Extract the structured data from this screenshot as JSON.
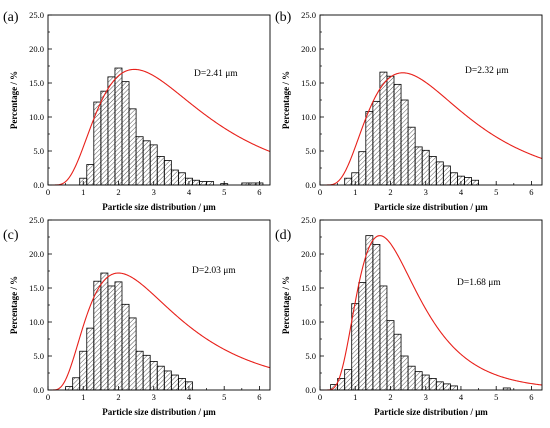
{
  "chart_data": [
    {
      "type": "bar",
      "panel_label": "(a)",
      "annotation": "D=2.41 μm",
      "xlabel": "Particle size distribution / μm",
      "ylabel": "Percentage / %",
      "xlim": [
        0,
        6.3
      ],
      "ylim": [
        0,
        25
      ],
      "x_ticks": [
        "0",
        "1",
        "2",
        "3",
        "4",
        "5",
        "6"
      ],
      "y_ticks": [
        "0.0",
        "5.0",
        "10.0",
        "15.0",
        "20.0",
        "25.0"
      ],
      "bin_width": 0.2,
      "bins": [
        {
          "x": 1.0,
          "value": 1.0
        },
        {
          "x": 1.2,
          "value": 3.0
        },
        {
          "x": 1.4,
          "value": 12.2
        },
        {
          "x": 1.6,
          "value": 13.8
        },
        {
          "x": 1.8,
          "value": 15.9
        },
        {
          "x": 2.0,
          "value": 17.2
        },
        {
          "x": 2.2,
          "value": 15.2
        },
        {
          "x": 2.4,
          "value": 11.2
        },
        {
          "x": 2.6,
          "value": 7.1
        },
        {
          "x": 2.8,
          "value": 6.5
        },
        {
          "x": 3.0,
          "value": 5.9
        },
        {
          "x": 3.2,
          "value": 4.2
        },
        {
          "x": 3.4,
          "value": 3.6
        },
        {
          "x": 3.6,
          "value": 2.2
        },
        {
          "x": 3.8,
          "value": 1.8
        },
        {
          "x": 4.0,
          "value": 1.0
        },
        {
          "x": 4.2,
          "value": 0.7
        },
        {
          "x": 4.4,
          "value": 0.5
        },
        {
          "x": 4.6,
          "value": 0.5
        },
        {
          "x": 5.0,
          "value": 0.2
        },
        {
          "x": 5.6,
          "value": 0.3
        },
        {
          "x": 5.8,
          "value": 0.3
        },
        {
          "x": 6.0,
          "value": 0.3
        }
      ],
      "fit_curve": {
        "type": "lognormal",
        "mode": 2.45,
        "sigma": 0.6,
        "peak": 17.0,
        "color": "#e8201a"
      }
    },
    {
      "type": "bar",
      "panel_label": "(b)",
      "annotation": "D=2.32 μm",
      "xlabel": "Particle size distribution / μm",
      "ylabel": "Percentage / %",
      "xlim": [
        0,
        6.3
      ],
      "ylim": [
        0,
        25
      ],
      "x_ticks": [
        "0",
        "1",
        "2",
        "3",
        "4",
        "5",
        "6"
      ],
      "y_ticks": [
        "0.0",
        "5.0",
        "10.0",
        "15.0",
        "20.0",
        "25.0"
      ],
      "bin_width": 0.2,
      "bins": [
        {
          "x": 0.8,
          "value": 1.0
        },
        {
          "x": 1.0,
          "value": 1.8
        },
        {
          "x": 1.2,
          "value": 4.9
        },
        {
          "x": 1.4,
          "value": 10.8
        },
        {
          "x": 1.6,
          "value": 12.3
        },
        {
          "x": 1.8,
          "value": 16.6
        },
        {
          "x": 2.0,
          "value": 16.0
        },
        {
          "x": 2.2,
          "value": 14.8
        },
        {
          "x": 2.4,
          "value": 12.5
        },
        {
          "x": 2.6,
          "value": 8.5
        },
        {
          "x": 2.8,
          "value": 5.6
        },
        {
          "x": 3.0,
          "value": 5.1
        },
        {
          "x": 3.2,
          "value": 4.2
        },
        {
          "x": 3.4,
          "value": 3.4
        },
        {
          "x": 3.6,
          "value": 2.8
        },
        {
          "x": 3.8,
          "value": 1.8
        },
        {
          "x": 4.0,
          "value": 1.3
        },
        {
          "x": 4.2,
          "value": 1.1
        },
        {
          "x": 4.4,
          "value": 0.7
        }
      ],
      "fit_curve": {
        "type": "lognormal",
        "mode": 2.35,
        "sigma": 0.58,
        "peak": 16.5,
        "color": "#e8201a"
      }
    },
    {
      "type": "bar",
      "panel_label": "(c)",
      "annotation": "D=2.03 μm",
      "xlabel": "Particle size distribution / μm",
      "ylabel": "Percentage / %",
      "xlim": [
        0,
        6.3
      ],
      "ylim": [
        0,
        25
      ],
      "x_ticks": [
        "0",
        "1",
        "2",
        "3",
        "4",
        "5",
        "6"
      ],
      "y_ticks": [
        "0.0",
        "5.0",
        "10.0",
        "15.0",
        "20.0",
        "25.0"
      ],
      "bin_width": 0.2,
      "bins": [
        {
          "x": 0.6,
          "value": 0.5
        },
        {
          "x": 0.8,
          "value": 1.8
        },
        {
          "x": 1.0,
          "value": 5.7
        },
        {
          "x": 1.2,
          "value": 9.1
        },
        {
          "x": 1.4,
          "value": 16.0
        },
        {
          "x": 1.6,
          "value": 17.2
        },
        {
          "x": 1.8,
          "value": 15.3
        },
        {
          "x": 2.0,
          "value": 15.9
        },
        {
          "x": 2.2,
          "value": 12.6
        },
        {
          "x": 2.4,
          "value": 10.6
        },
        {
          "x": 2.6,
          "value": 5.7
        },
        {
          "x": 2.8,
          "value": 5.1
        },
        {
          "x": 3.0,
          "value": 4.2
        },
        {
          "x": 3.2,
          "value": 3.5
        },
        {
          "x": 3.4,
          "value": 2.8
        },
        {
          "x": 3.6,
          "value": 2.2
        },
        {
          "x": 3.8,
          "value": 1.7
        },
        {
          "x": 4.0,
          "value": 1.2
        }
      ],
      "fit_curve": {
        "type": "lognormal",
        "mode": 2.0,
        "sigma": 0.63,
        "peak": 17.2,
        "color": "#e8201a"
      }
    },
    {
      "type": "bar",
      "panel_label": "(d)",
      "annotation": "D=1.68 μm",
      "xlabel": "Particle size distribution / μm",
      "ylabel": "Percentage / %",
      "xlim": [
        0,
        6.3
      ],
      "ylim": [
        0,
        25
      ],
      "x_ticks": [
        "0",
        "1",
        "2",
        "3",
        "4",
        "5",
        "6"
      ],
      "y_ticks": [
        "0.0",
        "5.0",
        "10.0",
        "15.0",
        "20.0",
        "25.0"
      ],
      "bin_width": 0.2,
      "bins": [
        {
          "x": 0.4,
          "value": 0.8
        },
        {
          "x": 0.6,
          "value": 1.7
        },
        {
          "x": 0.8,
          "value": 3.0
        },
        {
          "x": 1.0,
          "value": 12.7
        },
        {
          "x": 1.2,
          "value": 15.8
        },
        {
          "x": 1.4,
          "value": 22.7
        },
        {
          "x": 1.6,
          "value": 21.4
        },
        {
          "x": 1.8,
          "value": 15.3
        },
        {
          "x": 2.0,
          "value": 10.2
        },
        {
          "x": 2.2,
          "value": 8.2
        },
        {
          "x": 2.4,
          "value": 5.0
        },
        {
          "x": 2.6,
          "value": 3.5
        },
        {
          "x": 2.8,
          "value": 2.7
        },
        {
          "x": 3.0,
          "value": 2.2
        },
        {
          "x": 3.2,
          "value": 1.7
        },
        {
          "x": 3.4,
          "value": 1.2
        },
        {
          "x": 3.6,
          "value": 0.9
        },
        {
          "x": 3.8,
          "value": 0.6
        },
        {
          "x": 5.3,
          "value": 0.3
        }
      ],
      "fit_curve": {
        "type": "lognormal",
        "mode": 1.7,
        "sigma": 0.5,
        "peak": 22.7,
        "color": "#e8201a"
      }
    }
  ]
}
